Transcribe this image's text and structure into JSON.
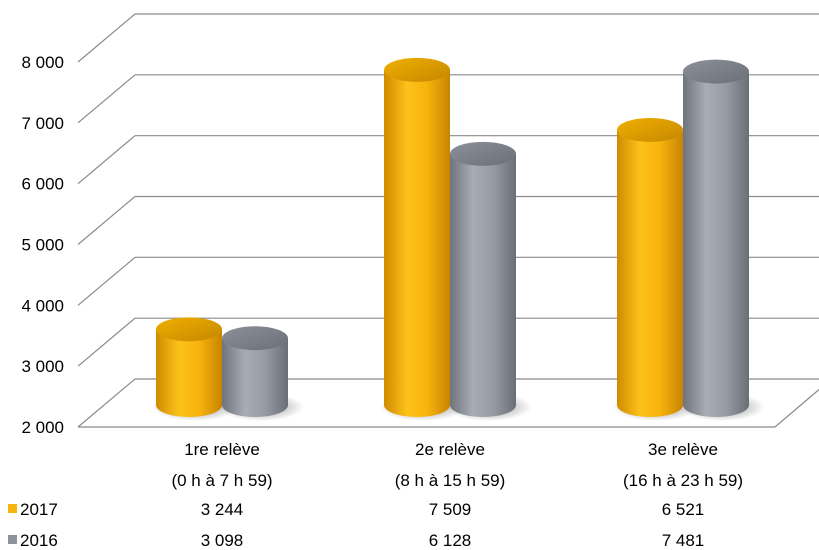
{
  "chart_data": {
    "type": "bar",
    "style": "3d-cylinder",
    "categories": [
      {
        "line1": "1re relève",
        "line2": "(0 h à 7 h 59)"
      },
      {
        "line1": "2e relève",
        "line2": "(8 h à 15 h 59)"
      },
      {
        "line1": "3e relève",
        "line2": "(16 h à 23 h 59)"
      }
    ],
    "series": [
      {
        "name": "2017",
        "color": "#f5b40e",
        "values": [
          3244,
          7509,
          6521
        ],
        "value_labels": [
          "3 244",
          "7 509",
          "6 521"
        ]
      },
      {
        "name": "2016",
        "color": "#8e939b",
        "values": [
          3098,
          6128,
          7481
        ],
        "value_labels": [
          "3 098",
          "6 128",
          "7 481"
        ]
      }
    ],
    "ylim": [
      2000,
      8000
    ],
    "yticks": [
      2000,
      3000,
      4000,
      5000,
      6000,
      7000,
      8000
    ],
    "ytick_labels": [
      "2 000",
      "3 000",
      "4 000",
      "5 000",
      "6 000",
      "7 000",
      "8 000"
    ],
    "grid": true,
    "legend": "data-table-below"
  }
}
